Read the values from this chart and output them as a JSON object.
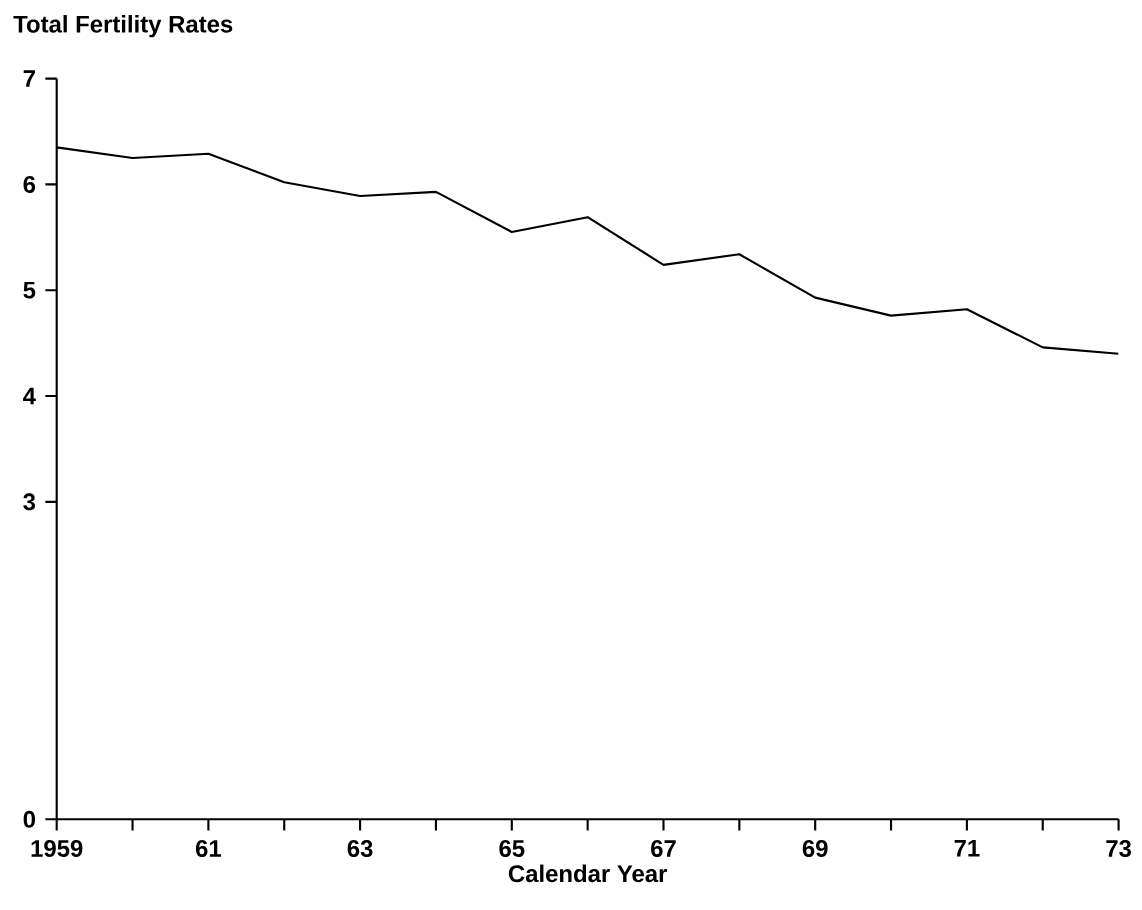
{
  "chart_data": {
    "type": "line",
    "title": "Total Fertility Rates",
    "xlabel": "Calendar Year",
    "x": [
      1959,
      1960,
      1961,
      1962,
      1963,
      1964,
      1965,
      1966,
      1967,
      1968,
      1969,
      1970,
      1971,
      1972,
      1973
    ],
    "values": [
      6.35,
      6.25,
      6.29,
      6.02,
      5.89,
      5.93,
      5.55,
      5.69,
      5.24,
      5.34,
      4.93,
      4.76,
      4.82,
      4.46,
      4.4
    ],
    "color": "#000000",
    "xlim": [
      1959,
      1973
    ],
    "ylim": [
      0,
      7
    ],
    "xticks": [
      1959,
      {
        "value": 1960,
        "label": null
      },
      {
        "value": 1961,
        "label": "61"
      },
      {
        "value": 1962,
        "label": null
      },
      {
        "value": 1963,
        "label": "63"
      },
      {
        "value": 1964,
        "label": null
      },
      {
        "value": 1965,
        "label": "65"
      },
      {
        "value": 1966,
        "label": null
      },
      {
        "value": 1967,
        "label": "67"
      },
      {
        "value": 1968,
        "label": null
      },
      {
        "value": 1969,
        "label": "69"
      },
      {
        "value": 1970,
        "label": null
      },
      {
        "value": 1971,
        "label": "71"
      },
      {
        "value": 1972,
        "label": null
      },
      {
        "value": 1973,
        "label": "73"
      }
    ],
    "yticks": [
      0,
      3,
      4,
      5,
      6,
      7
    ],
    "grid": false,
    "marker": "none",
    "line_style": "solid"
  }
}
